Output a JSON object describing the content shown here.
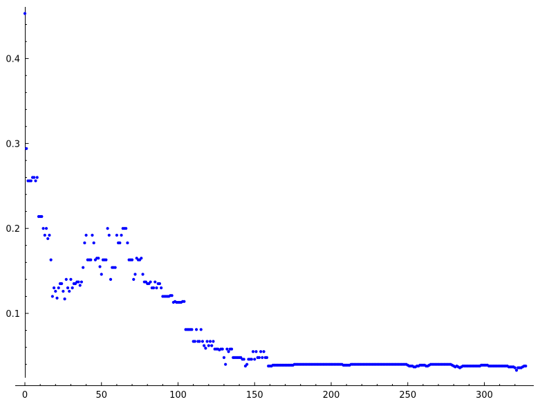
{
  "chart_data": {
    "type": "scatter",
    "title": "",
    "xlabel": "",
    "ylabel": "",
    "xlim": [
      0,
      330
    ],
    "ylim": [
      0.02,
      0.46
    ],
    "grid": false,
    "marker_color": "#0000ff",
    "x_ticks": [
      {
        "value": 0,
        "label": "0"
      },
      {
        "value": 50,
        "label": "50"
      },
      {
        "value": 100,
        "label": "100"
      },
      {
        "value": 150,
        "label": "150"
      },
      {
        "value": 200,
        "label": "200"
      },
      {
        "value": 250,
        "label": "250"
      },
      {
        "value": 300,
        "label": "300"
      }
    ],
    "y_ticks": [
      {
        "value": 0.1,
        "label": "0.1"
      },
      {
        "value": 0.2,
        "label": "0.2"
      },
      {
        "value": 0.3,
        "label": "0.3"
      },
      {
        "value": 0.4,
        "label": "0.4"
      }
    ],
    "points": [
      [
        0,
        0.453
      ],
      [
        1,
        0.294
      ],
      [
        2,
        0.256
      ],
      [
        3,
        0.256
      ],
      [
        4,
        0.256
      ],
      [
        5,
        0.26
      ],
      [
        6,
        0.26
      ],
      [
        7,
        0.256
      ],
      [
        8,
        0.26
      ],
      [
        9,
        0.214
      ],
      [
        10,
        0.214
      ],
      [
        11,
        0.214
      ],
      [
        12,
        0.2
      ],
      [
        13,
        0.192
      ],
      [
        14,
        0.2
      ],
      [
        15,
        0.188
      ],
      [
        16,
        0.192
      ],
      [
        17,
        0.163
      ],
      [
        18,
        0.12
      ],
      [
        19,
        0.13
      ],
      [
        20,
        0.126
      ],
      [
        21,
        0.118
      ],
      [
        22,
        0.13
      ],
      [
        23,
        0.135
      ],
      [
        24,
        0.135
      ],
      [
        25,
        0.126
      ],
      [
        26,
        0.117
      ],
      [
        27,
        0.14
      ],
      [
        28,
        0.13
      ],
      [
        29,
        0.126
      ],
      [
        30,
        0.14
      ],
      [
        31,
        0.13
      ],
      [
        32,
        0.135
      ],
      [
        33,
        0.135
      ],
      [
        34,
        0.137
      ],
      [
        35,
        0.137
      ],
      [
        36,
        0.133
      ],
      [
        37,
        0.137
      ],
      [
        38,
        0.154
      ],
      [
        39,
        0.183
      ],
      [
        40,
        0.192
      ],
      [
        41,
        0.163
      ],
      [
        42,
        0.163
      ],
      [
        43,
        0.163
      ],
      [
        44,
        0.192
      ],
      [
        45,
        0.183
      ],
      [
        46,
        0.163
      ],
      [
        47,
        0.165
      ],
      [
        48,
        0.165
      ],
      [
        49,
        0.155
      ],
      [
        50,
        0.146
      ],
      [
        51,
        0.163
      ],
      [
        52,
        0.163
      ],
      [
        53,
        0.163
      ],
      [
        54,
        0.2
      ],
      [
        55,
        0.192
      ],
      [
        56,
        0.14
      ],
      [
        57,
        0.154
      ],
      [
        58,
        0.154
      ],
      [
        59,
        0.154
      ],
      [
        60,
        0.192
      ],
      [
        61,
        0.183
      ],
      [
        62,
        0.183
      ],
      [
        63,
        0.192
      ],
      [
        64,
        0.2
      ],
      [
        65,
        0.2
      ],
      [
        66,
        0.2
      ],
      [
        67,
        0.183
      ],
      [
        68,
        0.163
      ],
      [
        69,
        0.163
      ],
      [
        70,
        0.163
      ],
      [
        71,
        0.14
      ],
      [
        72,
        0.146
      ],
      [
        73,
        0.165
      ],
      [
        74,
        0.163
      ],
      [
        75,
        0.163
      ],
      [
        76,
        0.165
      ],
      [
        77,
        0.146
      ],
      [
        78,
        0.137
      ],
      [
        79,
        0.137
      ],
      [
        80,
        0.135
      ],
      [
        81,
        0.135
      ],
      [
        82,
        0.137
      ],
      [
        83,
        0.13
      ],
      [
        84,
        0.13
      ],
      [
        85,
        0.137
      ],
      [
        86,
        0.13
      ],
      [
        87,
        0.135
      ],
      [
        88,
        0.135
      ],
      [
        89,
        0.13
      ],
      [
        90,
        0.12
      ],
      [
        91,
        0.12
      ],
      [
        92,
        0.12
      ],
      [
        93,
        0.12
      ],
      [
        94,
        0.12
      ],
      [
        95,
        0.121
      ],
      [
        96,
        0.121
      ],
      [
        97,
        0.113
      ],
      [
        98,
        0.114
      ],
      [
        99,
        0.113
      ],
      [
        100,
        0.113
      ],
      [
        101,
        0.113
      ],
      [
        102,
        0.113
      ],
      [
        103,
        0.114
      ],
      [
        104,
        0.114
      ],
      [
        105,
        0.081
      ],
      [
        106,
        0.081
      ],
      [
        107,
        0.081
      ],
      [
        108,
        0.081
      ],
      [
        109,
        0.081
      ],
      [
        110,
        0.067
      ],
      [
        111,
        0.067
      ],
      [
        112,
        0.081
      ],
      [
        113,
        0.067
      ],
      [
        114,
        0.067
      ],
      [
        115,
        0.081
      ],
      [
        116,
        0.067
      ],
      [
        117,
        0.062
      ],
      [
        118,
        0.059
      ],
      [
        119,
        0.067
      ],
      [
        120,
        0.062
      ],
      [
        121,
        0.067
      ],
      [
        122,
        0.062
      ],
      [
        123,
        0.067
      ],
      [
        124,
        0.058
      ],
      [
        125,
        0.058
      ],
      [
        126,
        0.058
      ],
      [
        127,
        0.057
      ],
      [
        128,
        0.058
      ],
      [
        129,
        0.058
      ],
      [
        130,
        0.048
      ],
      [
        131,
        0.04
      ],
      [
        132,
        0.058
      ],
      [
        133,
        0.055
      ],
      [
        134,
        0.058
      ],
      [
        135,
        0.058
      ],
      [
        136,
        0.048
      ],
      [
        137,
        0.048
      ],
      [
        138,
        0.048
      ],
      [
        139,
        0.048
      ],
      [
        140,
        0.048
      ],
      [
        141,
        0.048
      ],
      [
        142,
        0.046
      ],
      [
        143,
        0.046
      ],
      [
        144,
        0.038
      ],
      [
        145,
        0.04
      ],
      [
        146,
        0.046
      ],
      [
        147,
        0.046
      ],
      [
        148,
        0.046
      ],
      [
        149,
        0.055
      ],
      [
        150,
        0.046
      ],
      [
        151,
        0.055
      ],
      [
        152,
        0.048
      ],
      [
        153,
        0.048
      ],
      [
        154,
        0.055
      ],
      [
        155,
        0.048
      ],
      [
        156,
        0.055
      ],
      [
        157,
        0.048
      ],
      [
        158,
        0.048
      ],
      [
        159,
        0.038
      ],
      [
        160,
        0.038
      ],
      [
        161,
        0.038
      ],
      [
        162,
        0.039
      ],
      [
        163,
        0.039
      ],
      [
        164,
        0.039
      ],
      [
        165,
        0.039
      ],
      [
        166,
        0.039
      ],
      [
        167,
        0.039
      ],
      [
        168,
        0.039
      ],
      [
        169,
        0.039
      ],
      [
        170,
        0.039
      ],
      [
        171,
        0.039
      ],
      [
        172,
        0.039
      ],
      [
        173,
        0.039
      ],
      [
        174,
        0.039
      ],
      [
        175,
        0.039
      ],
      [
        176,
        0.04
      ],
      [
        177,
        0.04
      ],
      [
        178,
        0.04
      ],
      [
        179,
        0.04
      ],
      [
        180,
        0.04
      ],
      [
        181,
        0.04
      ],
      [
        182,
        0.04
      ],
      [
        183,
        0.04
      ],
      [
        184,
        0.04
      ],
      [
        185,
        0.04
      ],
      [
        186,
        0.04
      ],
      [
        187,
        0.04
      ],
      [
        188,
        0.04
      ],
      [
        189,
        0.04
      ],
      [
        190,
        0.04
      ],
      [
        191,
        0.04
      ],
      [
        192,
        0.04
      ],
      [
        193,
        0.04
      ],
      [
        194,
        0.04
      ],
      [
        195,
        0.04
      ],
      [
        196,
        0.04
      ],
      [
        197,
        0.04
      ],
      [
        198,
        0.04
      ],
      [
        199,
        0.04
      ],
      [
        200,
        0.04
      ],
      [
        201,
        0.04
      ],
      [
        202,
        0.04
      ],
      [
        203,
        0.04
      ],
      [
        204,
        0.04
      ],
      [
        205,
        0.04
      ],
      [
        206,
        0.04
      ],
      [
        207,
        0.04
      ],
      [
        208,
        0.039
      ],
      [
        209,
        0.039
      ],
      [
        210,
        0.039
      ],
      [
        211,
        0.039
      ],
      [
        212,
        0.039
      ],
      [
        213,
        0.04
      ],
      [
        214,
        0.04
      ],
      [
        215,
        0.04
      ],
      [
        216,
        0.04
      ],
      [
        217,
        0.04
      ],
      [
        218,
        0.04
      ],
      [
        219,
        0.04
      ],
      [
        220,
        0.04
      ],
      [
        221,
        0.04
      ],
      [
        222,
        0.04
      ],
      [
        223,
        0.04
      ],
      [
        224,
        0.04
      ],
      [
        225,
        0.04
      ],
      [
        226,
        0.04
      ],
      [
        227,
        0.04
      ],
      [
        228,
        0.04
      ],
      [
        229,
        0.04
      ],
      [
        230,
        0.04
      ],
      [
        231,
        0.04
      ],
      [
        232,
        0.04
      ],
      [
        233,
        0.04
      ],
      [
        234,
        0.04
      ],
      [
        235,
        0.04
      ],
      [
        236,
        0.04
      ],
      [
        237,
        0.04
      ],
      [
        238,
        0.04
      ],
      [
        239,
        0.04
      ],
      [
        240,
        0.04
      ],
      [
        241,
        0.04
      ],
      [
        242,
        0.04
      ],
      [
        243,
        0.04
      ],
      [
        244,
        0.04
      ],
      [
        245,
        0.04
      ],
      [
        246,
        0.04
      ],
      [
        247,
        0.04
      ],
      [
        248,
        0.04
      ],
      [
        249,
        0.04
      ],
      [
        250,
        0.039
      ],
      [
        251,
        0.038
      ],
      [
        252,
        0.038
      ],
      [
        253,
        0.038
      ],
      [
        254,
        0.037
      ],
      [
        255,
        0.037
      ],
      [
        256,
        0.038
      ],
      [
        257,
        0.038
      ],
      [
        258,
        0.039
      ],
      [
        259,
        0.039
      ],
      [
        260,
        0.039
      ],
      [
        261,
        0.039
      ],
      [
        262,
        0.038
      ],
      [
        263,
        0.038
      ],
      [
        264,
        0.039
      ],
      [
        265,
        0.04
      ],
      [
        266,
        0.04
      ],
      [
        267,
        0.04
      ],
      [
        268,
        0.04
      ],
      [
        269,
        0.04
      ],
      [
        270,
        0.04
      ],
      [
        271,
        0.04
      ],
      [
        272,
        0.04
      ],
      [
        273,
        0.04
      ],
      [
        274,
        0.04
      ],
      [
        275,
        0.04
      ],
      [
        276,
        0.04
      ],
      [
        277,
        0.04
      ],
      [
        278,
        0.04
      ],
      [
        279,
        0.039
      ],
      [
        280,
        0.038
      ],
      [
        281,
        0.037
      ],
      [
        282,
        0.038
      ],
      [
        283,
        0.037
      ],
      [
        284,
        0.036
      ],
      [
        285,
        0.037
      ],
      [
        286,
        0.038
      ],
      [
        287,
        0.038
      ],
      [
        288,
        0.038
      ],
      [
        289,
        0.038
      ],
      [
        290,
        0.038
      ],
      [
        291,
        0.038
      ],
      [
        292,
        0.038
      ],
      [
        293,
        0.038
      ],
      [
        294,
        0.038
      ],
      [
        295,
        0.038
      ],
      [
        296,
        0.038
      ],
      [
        297,
        0.038
      ],
      [
        298,
        0.039
      ],
      [
        299,
        0.039
      ],
      [
        300,
        0.039
      ],
      [
        301,
        0.039
      ],
      [
        302,
        0.039
      ],
      [
        303,
        0.038
      ],
      [
        304,
        0.038
      ],
      [
        305,
        0.038
      ],
      [
        306,
        0.038
      ],
      [
        307,
        0.038
      ],
      [
        308,
        0.038
      ],
      [
        309,
        0.038
      ],
      [
        310,
        0.038
      ],
      [
        311,
        0.038
      ],
      [
        312,
        0.038
      ],
      [
        313,
        0.038
      ],
      [
        314,
        0.038
      ],
      [
        315,
        0.038
      ],
      [
        316,
        0.037
      ],
      [
        317,
        0.037
      ],
      [
        318,
        0.037
      ],
      [
        319,
        0.037
      ],
      [
        320,
        0.036
      ],
      [
        321,
        0.033
      ],
      [
        322,
        0.036
      ],
      [
        323,
        0.036
      ],
      [
        324,
        0.036
      ],
      [
        325,
        0.037
      ],
      [
        326,
        0.038
      ],
      [
        327,
        0.038
      ]
    ]
  }
}
